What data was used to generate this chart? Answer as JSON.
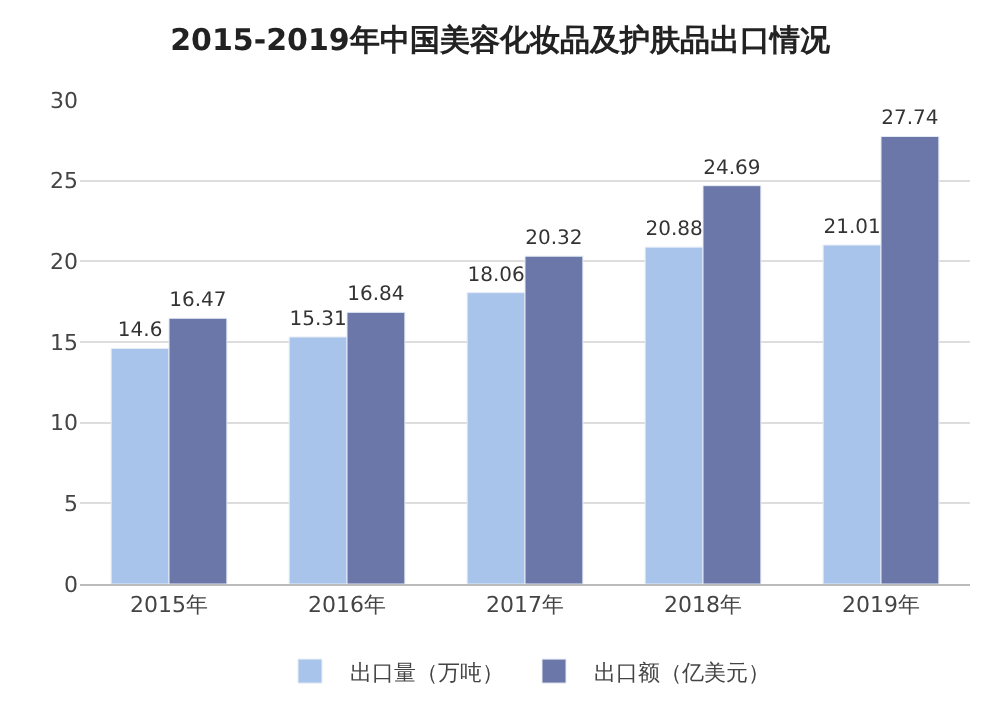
{
  "chart_data": {
    "type": "bar",
    "title": "2015-2019年中国美容化妆品及护肤品出口情况",
    "categories": [
      "2015年",
      "2016年",
      "2017年",
      "2018年",
      "2019年"
    ],
    "series": [
      {
        "name": "出口量（万吨）",
        "color": "#a9c4eb",
        "values": [
          14.6,
          15.31,
          18.06,
          20.88,
          21.01
        ]
      },
      {
        "name": "出口额（亿美元）",
        "color": "#6b77a8",
        "values": [
          16.47,
          16.84,
          20.32,
          24.69,
          27.74
        ]
      }
    ],
    "ylim": [
      0,
      30
    ],
    "yticks": [
      0,
      5,
      10,
      15,
      20,
      25,
      30
    ],
    "grid": "y",
    "legend": "bottom",
    "data_labels": true
  }
}
